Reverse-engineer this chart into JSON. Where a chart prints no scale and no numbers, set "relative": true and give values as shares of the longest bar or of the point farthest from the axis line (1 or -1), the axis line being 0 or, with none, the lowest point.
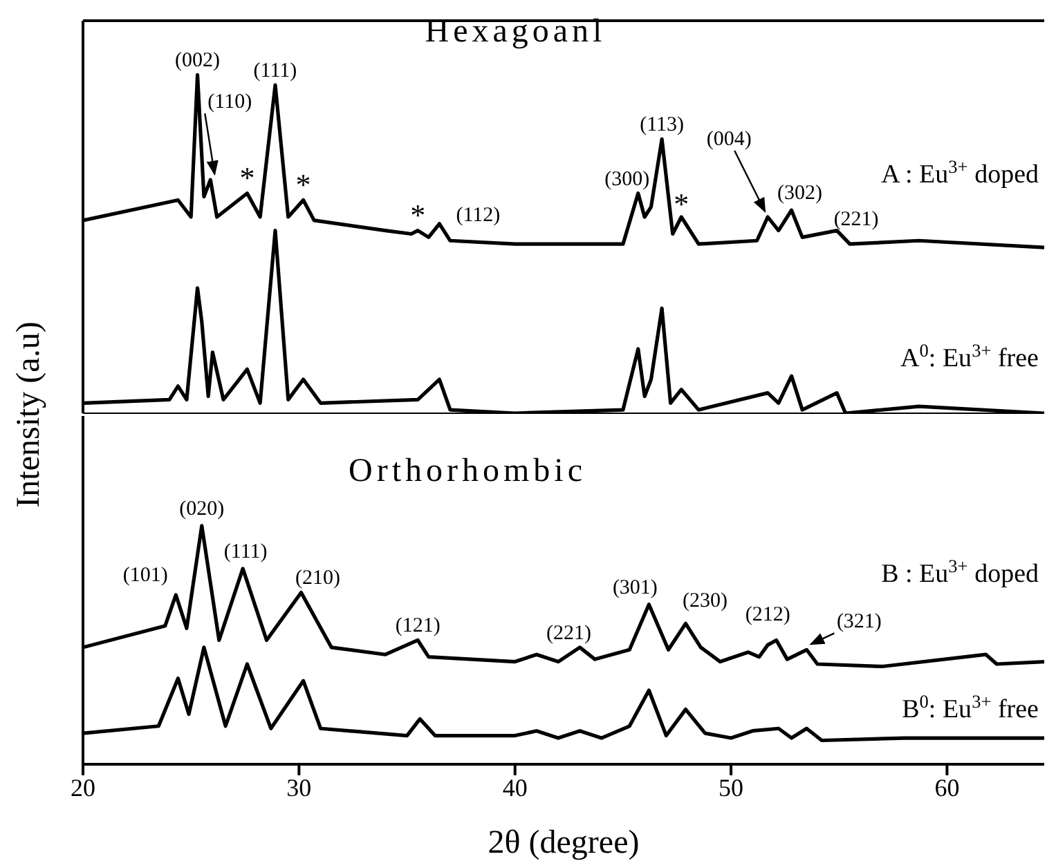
{
  "chart_data": [
    {
      "type": "line",
      "title": "Hexagoanl",
      "ylabel": "Intensity (a.u)",
      "relative": true,
      "xlim": [
        20,
        64.5
      ],
      "xticks": [
        20,
        30,
        40,
        50,
        60
      ],
      "tick_labels": false,
      "marker": "none",
      "line_style": "solid",
      "series": [
        {
          "name": "A : Eu$^{3+}$ doped",
          "color": "#000000",
          "x": [
            20,
            24.4,
            25.0,
            25.3,
            25.6,
            25.9,
            26.2,
            27.6,
            28.2,
            28.9,
            29.5,
            30.2,
            30.7,
            34,
            35.2,
            35.5,
            36.0,
            36.5,
            37,
            40,
            45,
            45.7,
            46.0,
            46.3,
            46.8,
            47.3,
            47.7,
            48.5,
            51.2,
            51.7,
            52.2,
            52.8,
            53.3,
            54.9,
            55.5,
            58.7,
            64.5
          ],
          "values": [
            0.57,
            0.63,
            0.58,
            1,
            0.64,
            0.69,
            0.58,
            0.65,
            0.58,
            0.97,
            0.58,
            0.63,
            0.57,
            0.54,
            0.53,
            0.54,
            0.52,
            0.56,
            0.51,
            0.5,
            0.5,
            0.65,
            0.58,
            0.61,
            0.81,
            0.53,
            0.58,
            0.5,
            0.51,
            0.58,
            0.54,
            0.6,
            0.52,
            0.54,
            0.5,
            0.51,
            0.49
          ]
        },
        {
          "name": "A$^{0}$: Eu$^{3+}$ free",
          "color": "#000000",
          "x": [
            20,
            24.0,
            24.4,
            24.8,
            25.3,
            25.5,
            25.8,
            26.0,
            26.5,
            27.6,
            28.2,
            28.9,
            29.5,
            30.2,
            31,
            35.5,
            36.5,
            37,
            40,
            45,
            45.7,
            46,
            46.3,
            46.8,
            47.2,
            47.7,
            48.5,
            51.7,
            52.2,
            52.8,
            53.3,
            54.9,
            55.3,
            58.7,
            64.5
          ],
          "values": [
            0.03,
            0.04,
            0.08,
            0.04,
            0.37,
            0.27,
            0.05,
            0.18,
            0.04,
            0.13,
            0.03,
            0.54,
            0.04,
            0.1,
            0.03,
            0.04,
            0.1,
            0.01,
            0,
            0.01,
            0.19,
            0.05,
            0.1,
            0.31,
            0.03,
            0.07,
            0.01,
            0.06,
            0.03,
            0.11,
            0.01,
            0.06,
            0,
            0.02,
            0
          ]
        }
      ],
      "annotations": [
        {
          "text": "(002)",
          "x": 25.3,
          "y": 1
        },
        {
          "text": "(110)",
          "x": 25.9,
          "y": 0.69
        },
        {
          "text": "(111)",
          "x": 28.9,
          "y": 0.97
        },
        {
          "text": "*",
          "x": 27.6,
          "y": 0.65
        },
        {
          "text": "*",
          "x": 30.2,
          "y": 0.63
        },
        {
          "text": "*",
          "x": 35.5,
          "y": 0.54
        },
        {
          "text": "(112)",
          "x": 36.5,
          "y": 0.56
        },
        {
          "text": "(300)",
          "x": 45.7,
          "y": 0.65
        },
        {
          "text": "(113)",
          "x": 46.8,
          "y": 0.81
        },
        {
          "text": "*",
          "x": 47.7,
          "y": 0.58
        },
        {
          "text": "(004)",
          "x": 51.7,
          "y": 0.58
        },
        {
          "text": "(302)",
          "x": 52.8,
          "y": 0.6
        },
        {
          "text": "(221)",
          "x": 54.9,
          "y": 0.54
        }
      ]
    },
    {
      "type": "line",
      "title": "Orthorhombic",
      "xlabel": "2θ (degree)",
      "relative": true,
      "xlim": [
        20,
        64.5
      ],
      "xticks": [
        20,
        30,
        40,
        50,
        60
      ],
      "tick_labels": "x",
      "marker": "none",
      "line_style": "solid",
      "series": [
        {
          "name": "B : Eu$^{3+}$ doped",
          "color": "#000000",
          "x": [
            20,
            23.8,
            24.3,
            24.8,
            25.5,
            26.3,
            27.4,
            28.5,
            30.1,
            31.5,
            34,
            35.5,
            36,
            40,
            41,
            42,
            43,
            43.7,
            45.3,
            46.2,
            47.1,
            47.9,
            48.6,
            49.5,
            50.8,
            51.3,
            51.7,
            52.1,
            52.6,
            53.5,
            54,
            57,
            61.8,
            62.3,
            64.5
          ],
          "values": [
            0.49,
            0.58,
            0.71,
            0.57,
            1,
            0.52,
            0.82,
            0.52,
            0.72,
            0.49,
            0.46,
            0.52,
            0.45,
            0.43,
            0.46,
            0.43,
            0.49,
            0.44,
            0.48,
            0.67,
            0.48,
            0.59,
            0.49,
            0.43,
            0.47,
            0.45,
            0.5,
            0.52,
            0.44,
            0.48,
            0.42,
            0.41,
            0.46,
            0.42,
            0.43
          ]
        },
        {
          "name": "B$^{0}$: Eu$^{3+}$ free",
          "color": "#000000",
          "x": [
            20,
            23.5,
            24.4,
            24.9,
            25.6,
            26.6,
            27.6,
            28.7,
            30.2,
            31,
            35,
            35.6,
            36.3,
            40,
            41,
            42,
            43,
            44,
            45.3,
            46.2,
            47,
            47.9,
            48.8,
            50,
            51,
            52.2,
            52.8,
            53.5,
            54.2,
            58,
            64.5
          ],
          "values": [
            0.13,
            0.16,
            0.36,
            0.21,
            0.49,
            0.16,
            0.42,
            0.15,
            0.35,
            0.15,
            0.12,
            0.19,
            0.12,
            0.12,
            0.14,
            0.11,
            0.14,
            0.11,
            0.16,
            0.31,
            0.12,
            0.23,
            0.13,
            0.11,
            0.14,
            0.15,
            0.11,
            0.15,
            0.1,
            0.11,
            0.11
          ]
        }
      ],
      "annotations": [
        {
          "text": "(101)",
          "x": 24.3,
          "y": 0.71
        },
        {
          "text": "(020)",
          "x": 25.5,
          "y": 1
        },
        {
          "text": "(111)",
          "x": 27.4,
          "y": 0.82
        },
        {
          "text": "(210)",
          "x": 30.1,
          "y": 0.72
        },
        {
          "text": "(121)",
          "x": 35.5,
          "y": 0.52
        },
        {
          "text": "(221)",
          "x": 43,
          "y": 0.49
        },
        {
          "text": "(301)",
          "x": 46.2,
          "y": 0.67
        },
        {
          "text": "(230)",
          "x": 47.9,
          "y": 0.59
        },
        {
          "text": "(212)",
          "x": 51.7,
          "y": 0.52
        },
        {
          "text": "(321)",
          "x": 53.5,
          "y": 0.48
        }
      ]
    }
  ]
}
